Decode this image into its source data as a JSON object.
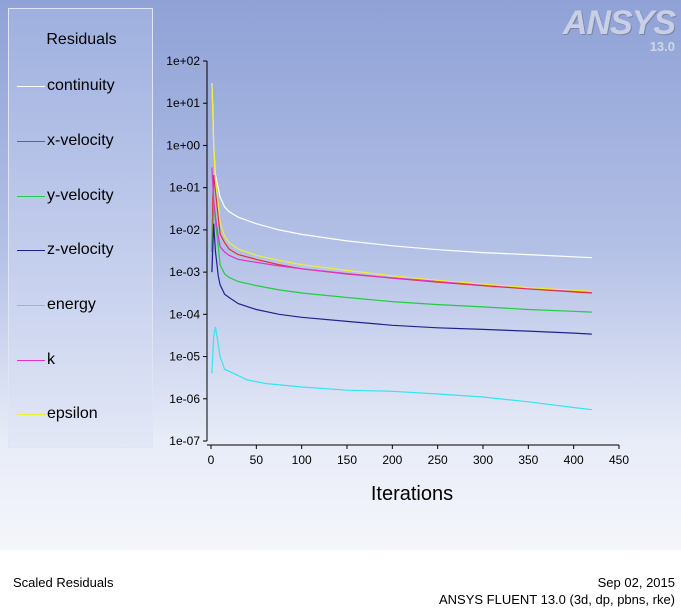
{
  "footer": {
    "left": "Scaled Residuals",
    "date": "Sep 02, 2015",
    "version": "ANSYS FLUENT 13.0 (3d, dp, pbns, rke)"
  },
  "logo": {
    "text": "ANSYS",
    "version": "13.0"
  },
  "chart_data": {
    "type": "line",
    "title": "",
    "xlabel": "Iterations",
    "ylabel": "",
    "yscale": "log",
    "xlim": [
      0,
      450
    ],
    "ylim": [
      1e-07,
      100
    ],
    "xticks": [
      "0",
      "50",
      "100",
      "150",
      "200",
      "250",
      "300",
      "350",
      "400",
      "450"
    ],
    "xtick_values": [
      0,
      50,
      100,
      150,
      200,
      250,
      300,
      350,
      400,
      450
    ],
    "yticks": [
      "1e+02",
      "1e+01",
      "1e+00",
      "1e-01",
      "1e-02",
      "1e-03",
      "1e-04",
      "1e-05",
      "1e-06",
      "1e-07"
    ],
    "ytick_values": [
      100,
      10,
      1,
      0.1,
      0.01,
      0.001,
      0.0001,
      1e-05,
      1e-06,
      1e-07
    ],
    "legend_title": "Residuals",
    "legend_position": "left",
    "series": [
      {
        "name": "continuity",
        "color": "#ffffff",
        "points": [
          [
            1,
            30
          ],
          [
            2,
            8
          ],
          [
            3,
            1
          ],
          [
            5,
            0.2
          ],
          [
            10,
            0.06
          ],
          [
            15,
            0.035
          ],
          [
            20,
            0.027
          ],
          [
            30,
            0.02
          ],
          [
            50,
            0.014
          ],
          [
            75,
            0.01
          ],
          [
            100,
            0.0078
          ],
          [
            150,
            0.0055
          ],
          [
            200,
            0.0042
          ],
          [
            250,
            0.0034
          ],
          [
            300,
            0.0029
          ],
          [
            350,
            0.0026
          ],
          [
            400,
            0.0023
          ],
          [
            420,
            0.0022
          ]
        ]
      },
      {
        "name": "x-velocity",
        "color": "#e03030",
        "points": [
          [
            1,
            0.003
          ],
          [
            2,
            0.05
          ],
          [
            3,
            0.2
          ],
          [
            5,
            0.08
          ],
          [
            8,
            0.02
          ],
          [
            10,
            0.008
          ],
          [
            15,
            0.005
          ],
          [
            20,
            0.0035
          ],
          [
            30,
            0.0026
          ],
          [
            50,
            0.002
          ],
          [
            75,
            0.0015
          ],
          [
            100,
            0.0012
          ],
          [
            150,
            0.0009
          ],
          [
            200,
            0.00072
          ],
          [
            250,
            0.00058
          ],
          [
            300,
            0.00048
          ],
          [
            350,
            0.0004
          ],
          [
            400,
            0.00034
          ],
          [
            420,
            0.00032
          ]
        ]
      },
      {
        "name": "y-velocity",
        "color": "#22cc44",
        "points": [
          [
            1,
            0.001
          ],
          [
            3,
            0.05
          ],
          [
            5,
            0.015
          ],
          [
            8,
            0.004
          ],
          [
            10,
            0.0015
          ],
          [
            15,
            0.0009
          ],
          [
            20,
            0.00075
          ],
          [
            30,
            0.0006
          ],
          [
            50,
            0.00048
          ],
          [
            75,
            0.00038
          ],
          [
            100,
            0.00032
          ],
          [
            150,
            0.00025
          ],
          [
            200,
            0.0002
          ],
          [
            250,
            0.00017
          ],
          [
            300,
            0.00015
          ],
          [
            350,
            0.00013
          ],
          [
            400,
            0.000118
          ],
          [
            420,
            0.000113
          ]
        ]
      },
      {
        "name": "z-velocity",
        "color": "#22228c",
        "points": [
          [
            1,
            0.001
          ],
          [
            3,
            0.014
          ],
          [
            5,
            0.003
          ],
          [
            8,
            0.0008
          ],
          [
            10,
            0.0005
          ],
          [
            15,
            0.0003
          ],
          [
            20,
            0.00025
          ],
          [
            30,
            0.00018
          ],
          [
            50,
            0.00013
          ],
          [
            75,
            0.0001
          ],
          [
            100,
            8.5e-05
          ],
          [
            150,
            6.8e-05
          ],
          [
            200,
            5.5e-05
          ],
          [
            250,
            4.8e-05
          ],
          [
            300,
            4.4e-05
          ],
          [
            350,
            4e-05
          ],
          [
            400,
            3.6e-05
          ],
          [
            420,
            3.4e-05
          ]
        ]
      },
      {
        "name": "energy",
        "color": "#33e5ee",
        "points": [
          [
            1,
            4e-06
          ],
          [
            3,
            3e-05
          ],
          [
            5,
            5e-05
          ],
          [
            10,
            1e-05
          ],
          [
            15,
            5e-06
          ],
          [
            25,
            4e-06
          ],
          [
            40,
            2.8e-06
          ],
          [
            60,
            2.3e-06
          ],
          [
            100,
            1.9e-06
          ],
          [
            150,
            1.6e-06
          ],
          [
            200,
            1.5e-06
          ],
          [
            250,
            1.3e-06
          ],
          [
            300,
            1.1e-06
          ],
          [
            350,
            8.5e-07
          ],
          [
            400,
            6.2e-07
          ],
          [
            420,
            5.5e-07
          ]
        ]
      },
      {
        "name": "k",
        "color": "#e033cc",
        "points": [
          [
            1,
            0.3
          ],
          [
            3,
            0.05
          ],
          [
            5,
            0.02
          ],
          [
            8,
            0.007
          ],
          [
            10,
            0.004
          ],
          [
            15,
            0.003
          ],
          [
            20,
            0.0025
          ],
          [
            30,
            0.002
          ],
          [
            50,
            0.0017
          ],
          [
            75,
            0.0014
          ],
          [
            100,
            0.0012
          ],
          [
            150,
            0.00092
          ],
          [
            200,
            0.00073
          ],
          [
            250,
            0.0006
          ],
          [
            300,
            0.0005
          ],
          [
            350,
            0.00042
          ],
          [
            400,
            0.00036
          ],
          [
            420,
            0.00034
          ]
        ]
      },
      {
        "name": "epsilon",
        "color": "#eeee33",
        "points": [
          [
            1,
            30
          ],
          [
            2,
            5
          ],
          [
            3,
            1
          ],
          [
            5,
            0.15
          ],
          [
            8,
            0.04
          ],
          [
            10,
            0.015
          ],
          [
            15,
            0.007
          ],
          [
            20,
            0.005
          ],
          [
            30,
            0.0035
          ],
          [
            50,
            0.0025
          ],
          [
            75,
            0.0019
          ],
          [
            100,
            0.0015
          ],
          [
            150,
            0.0011
          ],
          [
            200,
            0.00082
          ],
          [
            250,
            0.00064
          ],
          [
            300,
            0.00052
          ],
          [
            350,
            0.00043
          ],
          [
            400,
            0.00037
          ],
          [
            420,
            0.00035
          ]
        ]
      }
    ]
  }
}
